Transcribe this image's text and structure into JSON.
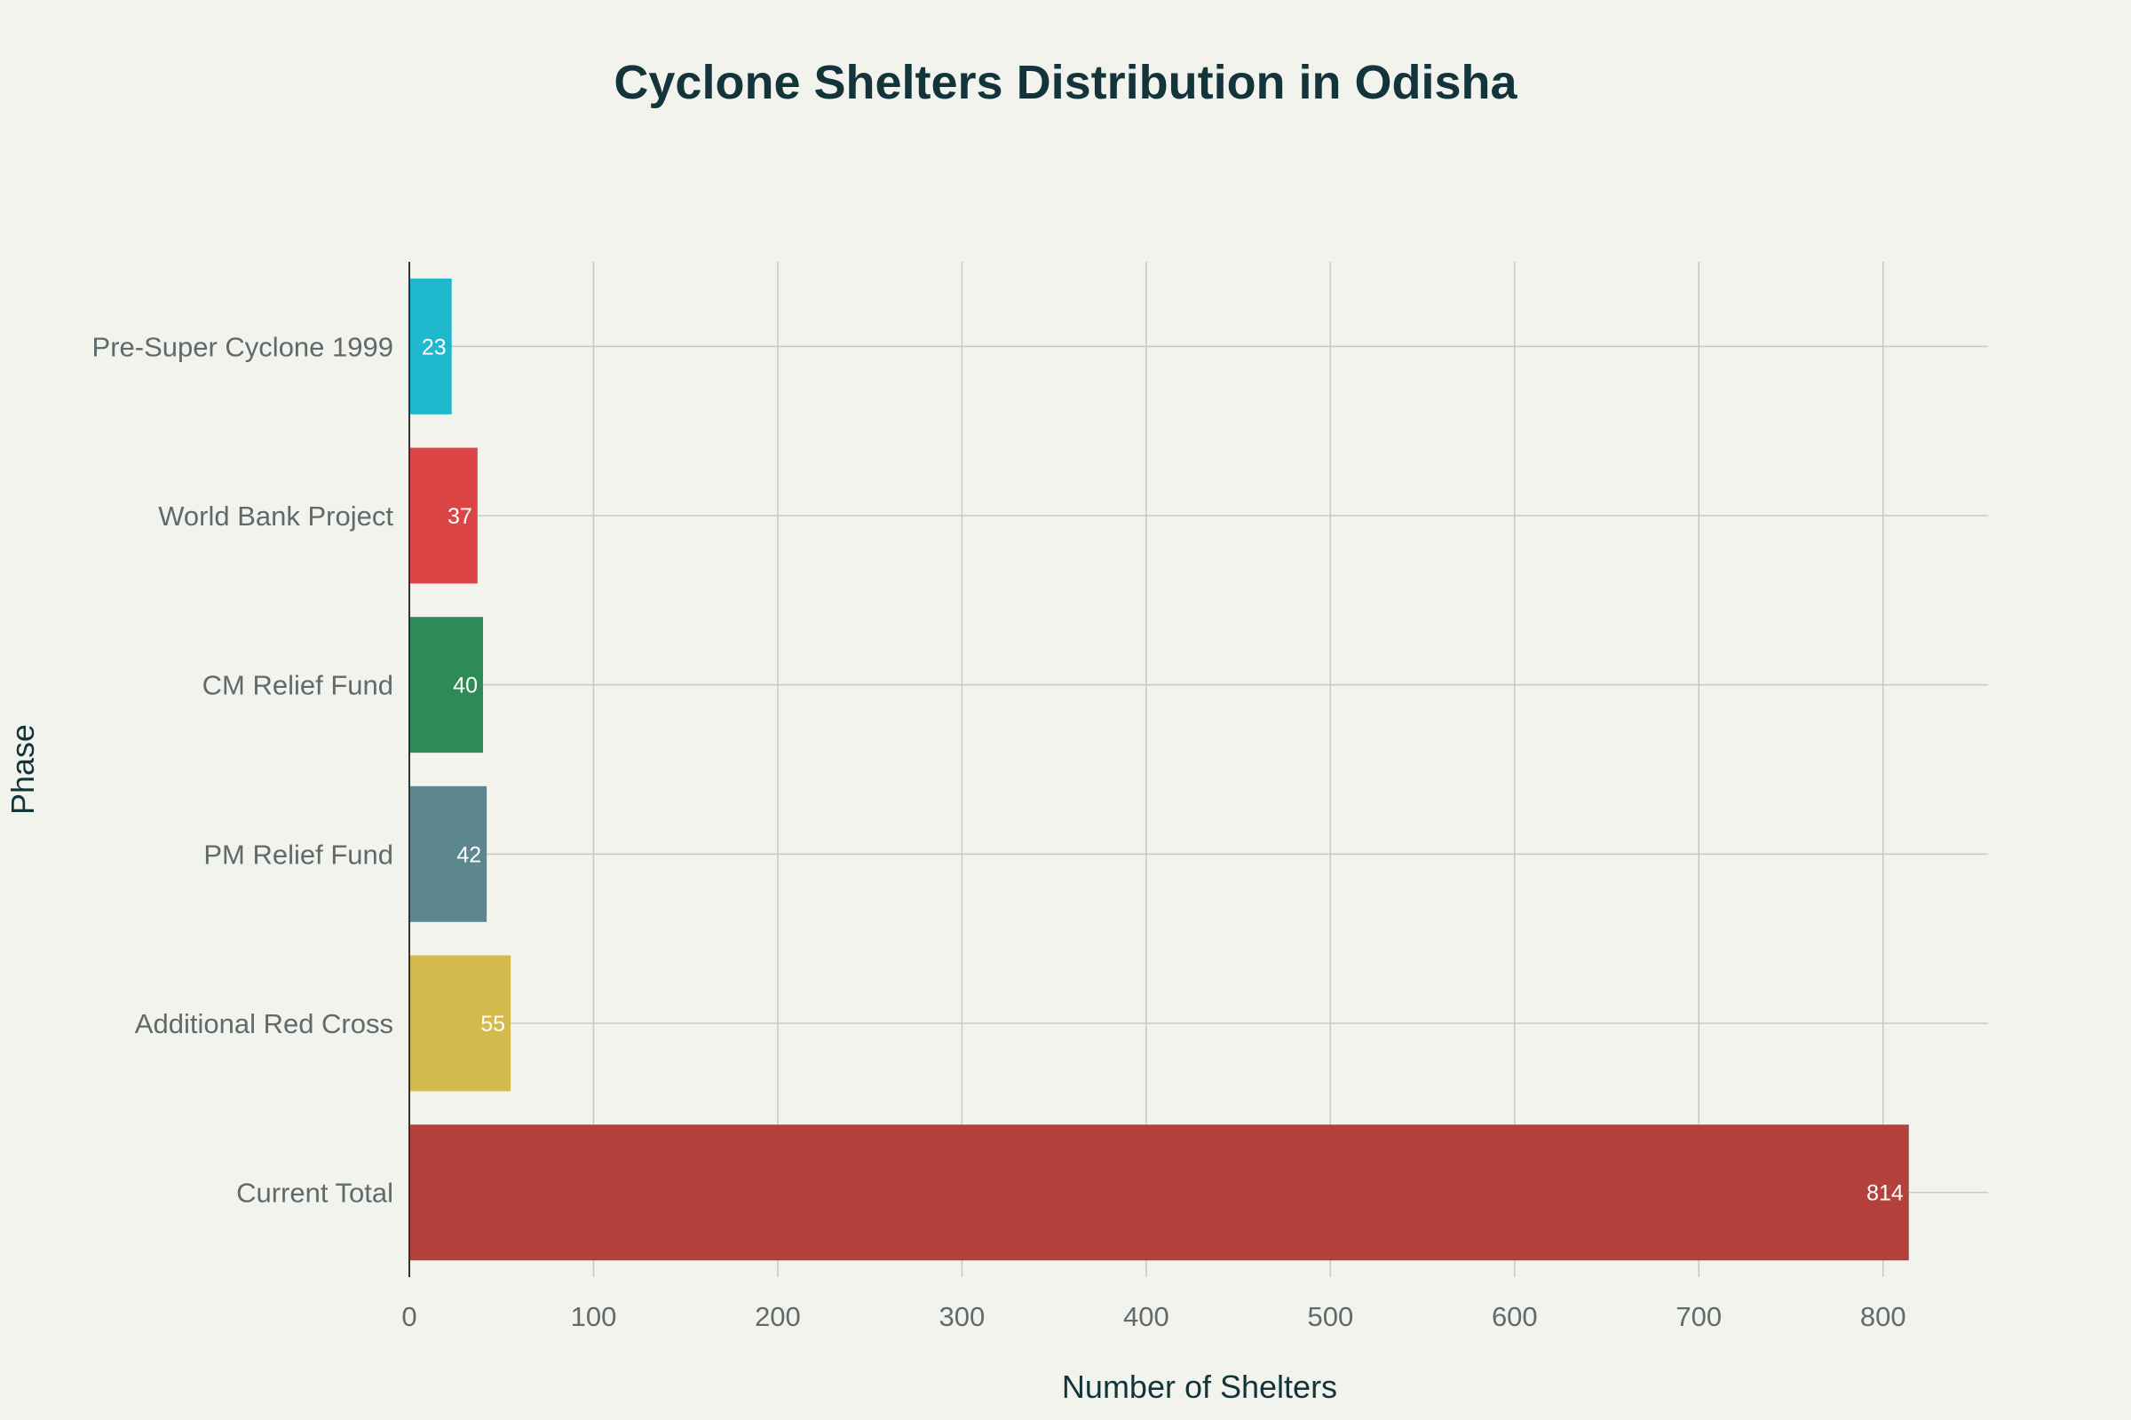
{
  "chart_data": {
    "type": "bar",
    "orientation": "horizontal",
    "title": "Cyclone Shelters Distribution in Odisha",
    "xlabel": "Number of Shelters",
    "ylabel": "Phase",
    "categories": [
      "Pre-Super Cyclone 1999",
      "World Bank Project",
      "CM Relief Fund",
      "PM Relief Fund",
      "Additional Red Cross",
      "Current Total"
    ],
    "values": [
      23,
      37,
      40,
      42,
      55,
      814
    ],
    "data_labels": [
      "23",
      "37",
      "40",
      "42",
      "55",
      "814"
    ],
    "colors": [
      "#1FB8CD",
      "#DB4545",
      "#2E8B57",
      "#5D878F",
      "#D2BA4C",
      "#B4413C"
    ],
    "xlim": [
      0,
      857
    ],
    "xticks": [
      0,
      100,
      200,
      300,
      400,
      500,
      600,
      700,
      800
    ],
    "grid": true,
    "legend": "none"
  }
}
